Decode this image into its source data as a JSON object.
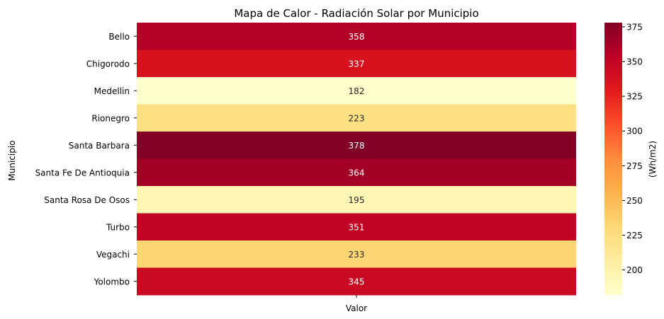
{
  "chart_data": {
    "type": "heatmap",
    "title": "Mapa de Calor - Radiación Solar por Municipio",
    "xlabel": "",
    "ylabel": "Municipio",
    "x_categories": [
      "Valor"
    ],
    "y_categories": [
      "Bello",
      "Chigorodo",
      "Medellin",
      "Rionegro",
      "Santa Barbara",
      "Santa Fe De Antioquia",
      "Santa Rosa De Osos",
      "Turbo",
      "Vegachi",
      "Yolombo"
    ],
    "values": [
      358,
      337,
      182,
      223,
      378,
      364,
      195,
      351,
      233,
      345
    ],
    "value_labels": [
      "358",
      "337",
      "182",
      "223",
      "378",
      "364",
      "195",
      "351",
      "233",
      "345"
    ],
    "colormap": "YlOrRd",
    "colorbar": {
      "label": "(Wh/m2)",
      "range": [
        182,
        378
      ],
      "ticks": [
        200,
        225,
        250,
        275,
        300,
        325,
        350,
        375
      ],
      "tick_labels": [
        "200",
        "225",
        "250",
        "275",
        "300",
        "325",
        "350",
        "375"
      ]
    }
  }
}
